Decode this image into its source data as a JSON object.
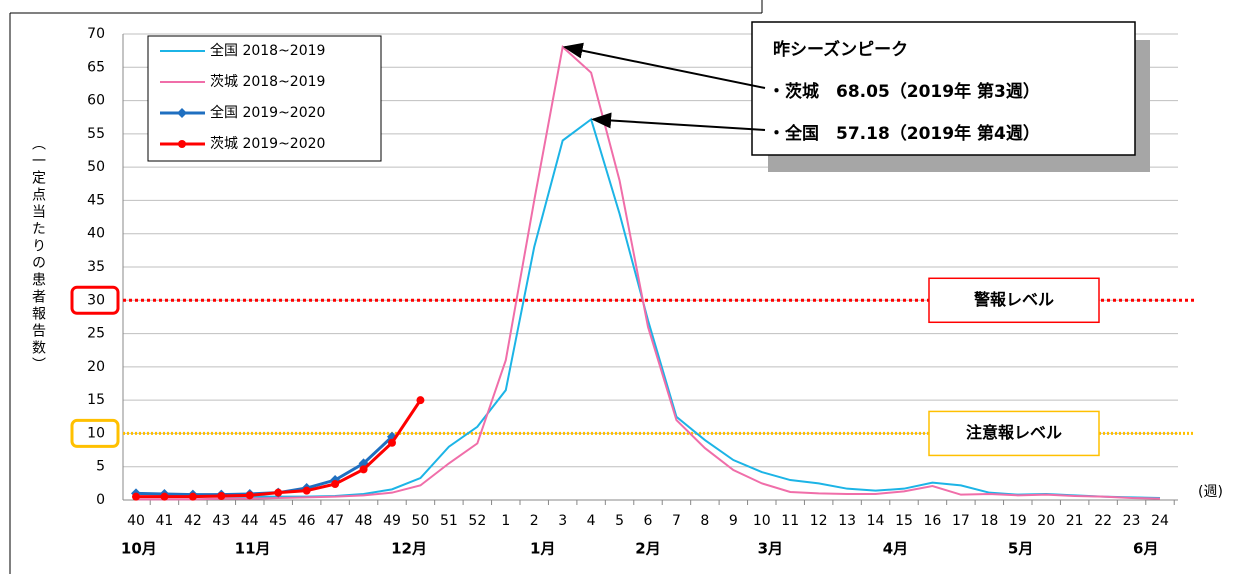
{
  "chart_data": {
    "type": "line",
    "y_label": "（一定点当たりの患者報告数）",
    "x_label": "(週)",
    "categories": [
      "40",
      "41",
      "42",
      "43",
      "44",
      "45",
      "46",
      "47",
      "48",
      "49",
      "50",
      "51",
      "52",
      "1",
      "2",
      "3",
      "4",
      "5",
      "6",
      "7",
      "8",
      "9",
      "10",
      "11",
      "12",
      "13",
      "14",
      "15",
      "16",
      "17",
      "18",
      "19",
      "20",
      "21",
      "22",
      "23",
      "24"
    ],
    "month_labels": [
      "10月",
      "11月",
      "12月",
      "1月",
      "2月",
      "3月",
      "4月",
      "5月",
      "6月"
    ],
    "ylim": [
      0,
      70
    ],
    "yticks": [
      0,
      5,
      10,
      15,
      20,
      25,
      30,
      35,
      40,
      45,
      50,
      55,
      60,
      65,
      70
    ],
    "grid": true,
    "series": [
      {
        "name": "全国 2018~2019",
        "color": "#1cb4e6",
        "marker": "none",
        "values": [
          0.5,
          0.5,
          0.5,
          0.5,
          0.5,
          0.5,
          0.5,
          0.6,
          0.9,
          1.6,
          3.3,
          8,
          11,
          16.5,
          38,
          54,
          57.18,
          43,
          27,
          12.5,
          9,
          6,
          4.2,
          3,
          2.5,
          1.7,
          1.4,
          1.7,
          2.6,
          2.2,
          1.1,
          0.8,
          0.9,
          0.7,
          0.5,
          0.4,
          0.3
        ]
      },
      {
        "name": "茨城 2018~2019",
        "color": "#f06ea9",
        "marker": "none",
        "values": [
          0.1,
          0.1,
          0.1,
          0.2,
          0.2,
          0.3,
          0.4,
          0.5,
          0.7,
          1.1,
          2.2,
          5.5,
          8.5,
          21,
          45,
          68.05,
          64.2,
          48,
          26,
          12,
          7.8,
          4.5,
          2.5,
          1.2,
          1.0,
          0.9,
          0.9,
          1.3,
          2.1,
          0.8,
          0.9,
          0.7,
          0.8,
          0.6,
          0.5,
          0.3,
          0.2
        ]
      },
      {
        "name": "全国 2019~2020",
        "color": "#1f6fc0",
        "marker": "diamond",
        "values": [
          1.0,
          0.9,
          0.8,
          0.8,
          0.9,
          1.1,
          1.8,
          3.0,
          5.5,
          9.5,
          null,
          null,
          null,
          null,
          null,
          null,
          null,
          null,
          null,
          null,
          null,
          null,
          null,
          null,
          null,
          null,
          null,
          null,
          null,
          null,
          null,
          null,
          null,
          null,
          null,
          null,
          null
        ]
      },
      {
        "name": "茨城 2019~2020",
        "color": "#ff0000",
        "marker": "circle",
        "values": [
          0.5,
          0.5,
          0.5,
          0.6,
          0.7,
          1.1,
          1.4,
          2.4,
          4.6,
          8.6,
          15.0,
          null,
          null,
          null,
          null,
          null,
          null,
          null,
          null,
          null,
          null,
          null,
          null,
          null,
          null,
          null,
          null,
          null,
          null,
          null,
          null,
          null,
          null,
          null,
          null,
          null,
          null
        ]
      }
    ],
    "reference_lines": [
      {
        "value": 30,
        "label": "警報レベル",
        "color": "#ff0000"
      },
      {
        "value": 10,
        "label": "注意報レベル",
        "color": "#ffc000"
      }
    ],
    "annotation": {
      "title": "昨シーズンピーク",
      "lines": [
        "・茨城　68.05（2019年 第3週）",
        "・全国　57.18（2019年 第4週）"
      ]
    }
  }
}
